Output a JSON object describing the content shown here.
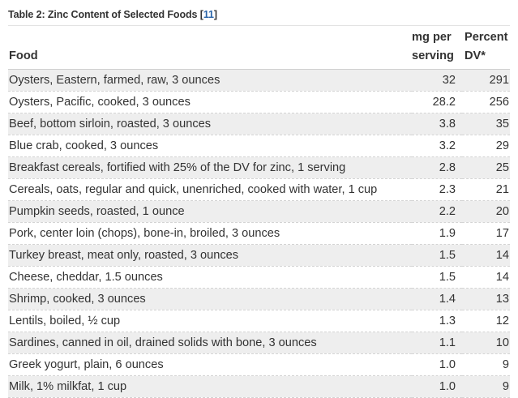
{
  "caption": {
    "text": "Table 2: Zinc Content of Selected Foods [",
    "ref": "11",
    "close": "]"
  },
  "columns": {
    "food": "Food",
    "mg_line1": "mg per",
    "mg_line2": "serving",
    "pct_line1": "Percent",
    "pct_line2": "DV*"
  },
  "rows": [
    {
      "food": "Oysters, Eastern, farmed, raw, 3 ounces",
      "mg": "32",
      "pct": "291"
    },
    {
      "food": "Oysters, Pacific, cooked, 3 ounces",
      "mg": "28.2",
      "pct": "256"
    },
    {
      "food": "Beef, bottom sirloin, roasted, 3 ounces",
      "mg": "3.8",
      "pct": "35"
    },
    {
      "food": "Blue crab, cooked, 3 ounces",
      "mg": "3.2",
      "pct": "29"
    },
    {
      "food": "Breakfast cereals, fortified with 25% of the DV for zinc, 1 serving",
      "mg": "2.8",
      "pct": "25"
    },
    {
      "food": "Cereals, oats, regular and quick, unenriched, cooked with water, 1 cup",
      "mg": "2.3",
      "pct": "21"
    },
    {
      "food": "Pumpkin seeds, roasted, 1 ounce",
      "mg": "2.2",
      "pct": "20"
    },
    {
      "food": "Pork, center loin (chops), bone-in, broiled, 3 ounces",
      "mg": "1.9",
      "pct": "17"
    },
    {
      "food": "Turkey breast, meat only, roasted, 3 ounces",
      "mg": "1.5",
      "pct": "14"
    },
    {
      "food": "Cheese, cheddar, 1.5 ounces",
      "mg": "1.5",
      "pct": "14"
    },
    {
      "food": "Shrimp, cooked, 3 ounces",
      "mg": "1.4",
      "pct": "13"
    },
    {
      "food": "Lentils, boiled, ½ cup",
      "mg": "1.3",
      "pct": "12"
    },
    {
      "food": "Sardines, canned in oil, drained solids with bone, 3 ounces",
      "mg": "1.1",
      "pct": "10"
    },
    {
      "food": "Greek yogurt, plain, 6 ounces",
      "mg": "1.0",
      "pct": "9"
    },
    {
      "food": "Milk, 1% milkfat, 1 cup",
      "mg": "1.0",
      "pct": "9"
    }
  ]
}
